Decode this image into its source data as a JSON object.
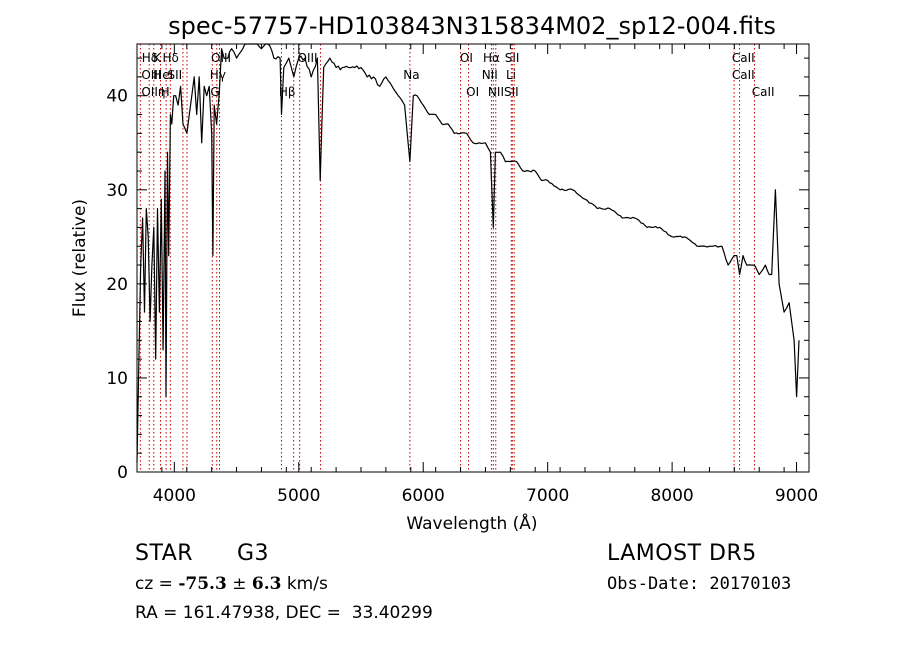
{
  "chart_data": {
    "type": "line",
    "title": "spec-57757-HD103843N315834M02_sp12-004.fits",
    "xlabel": "Wavelength (Å)",
    "ylabel": "Flux (relative)",
    "xlim": [
      3700,
      9100
    ],
    "ylim": [
      0,
      45.5
    ],
    "xticks": [
      4000,
      5000,
      6000,
      7000,
      8000,
      9000
    ],
    "yticks": [
      0,
      10,
      20,
      30,
      40
    ],
    "grid": false,
    "line_colors": {
      "spectrum": "#000000",
      "features": "#cc0000"
    },
    "series": [
      {
        "x": [
          3700,
          3715,
          3730,
          3745,
          3760,
          3775,
          3790,
          3805,
          3820,
          3835,
          3850,
          3865,
          3880,
          3895,
          3910,
          3925,
          3933,
          3945,
          3955,
          3968,
          3980,
          3995,
          4010,
          4030,
          4050,
          4070,
          4101,
          4120,
          4140,
          4160,
          4180,
          4200,
          4220,
          4240,
          4260,
          4280,
          4300,
          4310,
          4320,
          4340,
          4360,
          4380,
          4400,
          4430,
          4460,
          4500,
          4550,
          4600,
          4650,
          4700,
          4750,
          4800,
          4850,
          4861,
          4880,
          4920,
          4960,
          5000,
          5050,
          5100,
          5150,
          5172,
          5200,
          5250,
          5300,
          5350,
          5400,
          5450,
          5500,
          5550,
          5600,
          5650,
          5700,
          5750,
          5800,
          5850,
          5893,
          5920,
          5950,
          6000,
          6050,
          6100,
          6150,
          6200,
          6250,
          6300,
          6350,
          6400,
          6450,
          6500,
          6540,
          6563,
          6580,
          6620,
          6660,
          6700,
          6750,
          6800,
          6850,
          6900,
          6950,
          7000,
          7100,
          7200,
          7300,
          7400,
          7500,
          7600,
          7700,
          7800,
          7900,
          8000,
          8100,
          8200,
          8300,
          8400,
          8450,
          8498,
          8520,
          8542,
          8570,
          8600,
          8640,
          8662,
          8700,
          8750,
          8780,
          8800,
          8830,
          8860,
          8900,
          8940,
          8980,
          9000,
          9020
        ],
        "y": [
          1,
          12,
          22,
          27,
          17,
          28,
          25,
          16,
          22,
          26,
          12,
          28,
          17,
          29,
          13,
          32,
          8,
          34,
          23,
          38,
          37,
          40,
          40,
          39,
          41,
          37,
          36,
          38,
          40,
          42,
          38,
          42,
          35,
          41,
          40,
          41,
          36,
          23,
          39,
          37,
          40,
          45,
          44,
          44,
          45,
          44,
          45,
          46,
          46,
          45,
          46,
          44,
          44,
          38,
          43,
          44,
          42,
          44,
          44,
          42,
          44,
          31,
          43,
          44,
          43,
          43,
          43,
          43,
          43,
          42,
          42,
          41,
          42,
          41,
          40,
          39,
          33,
          40,
          40,
          39,
          38,
          38,
          37,
          37,
          36,
          36,
          36,
          35,
          35,
          35,
          34,
          26,
          34,
          34,
          33,
          33,
          33,
          32,
          32,
          32,
          31,
          31,
          30,
          30,
          29,
          28,
          28,
          27,
          27,
          26,
          26,
          25,
          25,
          24,
          24,
          24,
          22,
          23,
          23,
          21,
          23,
          22,
          22,
          22,
          21,
          22,
          21,
          21,
          30,
          20,
          17,
          18,
          14,
          8,
          14
        ]
      }
    ],
    "feature_lines": [
      {
        "label": "OII",
        "x": 3727
      },
      {
        "label": "Hθ",
        "x": 3798
      },
      {
        "label": "Hη",
        "x": 3835
      },
      {
        "label": "HeI",
        "x": 3889
      },
      {
        "label": "K",
        "x": 3934
      },
      {
        "label": "H",
        "x": 3968
      },
      {
        "label": "SII",
        "x": 4069
      },
      {
        "label": "Hδ",
        "x": 4102
      },
      {
        "label": "G",
        "x": 4305
      },
      {
        "label": "Hγ",
        "x": 4341
      },
      {
        "label": "OIII",
        "x": 4363
      },
      {
        "label": "Hβ",
        "x": 4861
      },
      {
        "label": "OIII",
        "x": 4959
      },
      {
        "label": "OIII",
        "x": 5007
      },
      {
        "label": "Mg",
        "x": 5175
      },
      {
        "label": "Na",
        "x": 5893
      },
      {
        "label": "OI",
        "x": 6300
      },
      {
        "label": "OI",
        "x": 6364
      },
      {
        "label": "NII",
        "x": 6548
      },
      {
        "label": "Hα",
        "x": 6563
      },
      {
        "label": "NII",
        "x": 6583
      },
      {
        "label": "Li",
        "x": 6708
      },
      {
        "label": "SII",
        "x": 6716
      },
      {
        "label": "SII",
        "x": 6731
      },
      {
        "label": "CaII",
        "x": 8498
      },
      {
        "label": "CaII",
        "x": 8542
      },
      {
        "label": "CaII",
        "x": 8662
      }
    ],
    "visible_labels": [
      {
        "text": "Hδ",
        "x": 3738,
        "row": 1
      },
      {
        "text": "K",
        "x": 3830,
        "row": 1
      },
      {
        "text": "Hδ",
        "x": 3905,
        "row": 1
      },
      {
        "text": "OIII",
        "x": 4295,
        "row": 1
      },
      {
        "text": "OIII",
        "x": 4990,
        "row": 1
      },
      {
        "text": "OI",
        "x": 6295,
        "row": 1
      },
      {
        "text": "Hα",
        "x": 6480,
        "row": 1
      },
      {
        "text": "SII",
        "x": 6655,
        "row": 1
      },
      {
        "text": "CaII",
        "x": 8480,
        "row": 1
      },
      {
        "text": "OIII",
        "x": 3735,
        "row": 2
      },
      {
        "text": "HeI",
        "x": 3830,
        "row": 2
      },
      {
        "text": "SII",
        "x": 3945,
        "row": 2
      },
      {
        "text": "Hγ",
        "x": 4285,
        "row": 2
      },
      {
        "text": "Na",
        "x": 5840,
        "row": 2
      },
      {
        "text": "NII",
        "x": 6470,
        "row": 2
      },
      {
        "text": "Li",
        "x": 6665,
        "row": 2
      },
      {
        "text": "CaII",
        "x": 8480,
        "row": 2
      },
      {
        "text": "OIIη",
        "x": 3735,
        "row": 3
      },
      {
        "text": "H",
        "x": 3890,
        "row": 3
      },
      {
        "text": "G",
        "x": 4290,
        "row": 3
      },
      {
        "text": "Hβ",
        "x": 4840,
        "row": 3
      },
      {
        "text": "OI",
        "x": 6345,
        "row": 3
      },
      {
        "text": "NIISII",
        "x": 6520,
        "row": 3
      },
      {
        "text": "CaII",
        "x": 8640,
        "row": 3
      }
    ]
  },
  "info": {
    "object_class": "STAR",
    "subclass": "G3",
    "survey": "LAMOST DR5",
    "cz_label": "cz = ",
    "cz_value": "-75.3",
    "cz_pm": " ± ",
    "cz_err": "6.3",
    "cz_unit": " km/s",
    "obs_date": "Obs-Date: 20170103",
    "coords": "RA = 161.47938, DEC =  33.40299"
  }
}
